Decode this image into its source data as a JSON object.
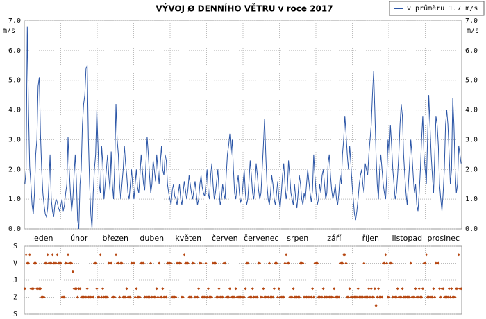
{
  "chart_data": [
    {
      "type": "line",
      "title": "VÝVOJ Ø DENNÍHO VĚTRU v roce 2017",
      "unit": "m/s",
      "x_labels": [
        "leden",
        "únor",
        "březen",
        "duben",
        "květen",
        "červen",
        "červenec",
        "srpen",
        "září",
        "říjen",
        "listopad",
        "prosinec"
      ],
      "ylim": [
        0,
        7
      ],
      "yticks": [
        {
          "value": 0,
          "label": "0.0"
        },
        {
          "value": 1,
          "label": "1.0"
        },
        {
          "value": 2,
          "label": "2.0"
        },
        {
          "value": 3,
          "label": "3.0"
        },
        {
          "value": 4,
          "label": "4.0"
        },
        {
          "value": 5,
          "label": "5.0"
        },
        {
          "value": 6,
          "label": "6.0"
        },
        {
          "value": 7,
          "label": "7.0"
        }
      ],
      "grid": true,
      "legend": "top-right",
      "series": [
        {
          "name": "v průměru 1.7 m/s",
          "color": "#2b55a6",
          "values": [
            1.5,
            2.0,
            6.8,
            4.0,
            2.1,
            1.5,
            0.8,
            0.5,
            1.2,
            2.5,
            3.0,
            4.8,
            5.1,
            3.2,
            2.0,
            1.2,
            0.8,
            0.5,
            0.4,
            0.7,
            1.5,
            2.5,
            1.0,
            0.6,
            0.4,
            0.8,
            1.0,
            0.9,
            0.7,
            0.6,
            0.8,
            1.0,
            0.6,
            0.8,
            1.2,
            1.5,
            3.1,
            2.0,
            1.2,
            0.6,
            1.0,
            1.8,
            2.5,
            1.6,
            0.3,
            0.0,
            1.5,
            2.0,
            3.5,
            4.2,
            4.5,
            5.4,
            5.5,
            3.0,
            1.5,
            0.5,
            0.0,
            1.2,
            2.0,
            2.5,
            4.0,
            2.8,
            1.5,
            1.2,
            2.8,
            2.2,
            1.0,
            1.5,
            2.0,
            2.5,
            1.8,
            1.3,
            2.6,
            1.5,
            1.0,
            2.2,
            4.2,
            3.0,
            2.5,
            1.5,
            1.0,
            1.5,
            2.0,
            2.8,
            2.2,
            1.8,
            1.2,
            1.0,
            1.5,
            2.0,
            1.4,
            1.0,
            1.5,
            2.0,
            1.4,
            1.2,
            1.8,
            2.5,
            2.0,
            1.5,
            1.3,
            2.2,
            3.1,
            2.5,
            1.8,
            1.2,
            1.5,
            2.3,
            2.0,
            1.6,
            2.5,
            2.0,
            1.5,
            2.2,
            2.8,
            2.0,
            1.8,
            2.5,
            2.3,
            1.5,
            1.2,
            1.0,
            0.8,
            1.3,
            1.5,
            1.1,
            1.0,
            0.8,
            1.2,
            1.5,
            1.0,
            0.8,
            1.2,
            1.6,
            1.3,
            1.0,
            1.3,
            1.8,
            1.5,
            1.2,
            1.0,
            1.3,
            1.6,
            1.2,
            0.8,
            1.0,
            1.5,
            1.8,
            1.4,
            1.2,
            1.1,
            1.5,
            2.0,
            1.2,
            1.0,
            1.8,
            2.2,
            1.5,
            1.0,
            1.2,
            1.6,
            2.0,
            1.3,
            0.8,
            1.0,
            1.5,
            1.2,
            1.0,
            1.8,
            2.5,
            2.8,
            3.2,
            2.5,
            3.0,
            2.0,
            1.2,
            1.0,
            1.5,
            1.8,
            1.2,
            0.9,
            1.0,
            1.5,
            2.0,
            1.2,
            0.8,
            1.0,
            1.6,
            2.3,
            1.8,
            1.2,
            1.0,
            1.5,
            2.2,
            1.8,
            1.3,
            1.0,
            1.2,
            2.0,
            2.8,
            3.7,
            2.5,
            1.5,
            1.0,
            0.8,
            1.2,
            1.8,
            1.5,
            1.0,
            0.8,
            1.2,
            1.6,
            1.0,
            0.7,
            1.2,
            1.8,
            2.2,
            1.5,
            1.0,
            1.3,
            2.3,
            1.8,
            1.2,
            1.0,
            0.8,
            1.5,
            1.0,
            0.7,
            1.2,
            1.8,
            1.5,
            1.0,
            0.8,
            1.2,
            1.0,
            1.5,
            2.0,
            1.6,
            1.2,
            0.9,
            1.3,
            2.5,
            1.8,
            1.2,
            0.8,
            1.0,
            1.5,
            1.2,
            1.8,
            2.0,
            1.5,
            1.0,
            1.2,
            2.2,
            2.5,
            1.8,
            1.3,
            1.0,
            1.2,
            1.5,
            1.0,
            0.8,
            1.2,
            1.8,
            1.5,
            2.5,
            3.0,
            3.8,
            3.2,
            2.5,
            2.0,
            2.8,
            2.2,
            1.5,
            1.0,
            0.5,
            0.3,
            0.6,
            1.0,
            1.5,
            1.8,
            2.0,
            1.5,
            1.2,
            2.2,
            2.0,
            1.8,
            2.5,
            3.0,
            3.5,
            4.5,
            5.3,
            4.0,
            2.5,
            1.5,
            1.0,
            2.0,
            2.5,
            2.0,
            1.5,
            1.2,
            1.0,
            1.8,
            3.0,
            2.5,
            3.5,
            2.8,
            2.0,
            1.5,
            1.0,
            1.2,
            1.8,
            2.5,
            3.5,
            4.2,
            3.8,
            2.5,
            1.8,
            1.2,
            0.8,
            1.5,
            2.2,
            3.0,
            2.5,
            1.8,
            1.2,
            1.5,
            0.8,
            0.6,
            1.2,
            2.0,
            3.0,
            3.8,
            2.5,
            2.0,
            1.5,
            3.0,
            4.5,
            3.5,
            2.5,
            1.8,
            1.2,
            2.5,
            3.8,
            3.5,
            2.8,
            1.5,
            1.0,
            0.6,
            1.2,
            2.0,
            3.5,
            4.0,
            3.5,
            2.5,
            1.5,
            2.0,
            4.4,
            3.5,
            2.0,
            1.2,
            1.5,
            2.8,
            2.5,
            2.2
          ]
        }
      ]
    },
    {
      "type": "scatter",
      "ylim": [
        0,
        360
      ],
      "yticks": [
        {
          "value": 0,
          "label": "S"
        },
        {
          "value": 90,
          "label": "V"
        },
        {
          "value": 180,
          "label": "J"
        },
        {
          "value": 270,
          "label": "Z"
        },
        {
          "value": 360,
          "label": "S"
        }
      ],
      "grid": true,
      "color": "#b5450f",
      "values": [
        225,
        45,
        90,
        90,
        45,
        225,
        225,
        225,
        90,
        90,
        225,
        225,
        225,
        225,
        270,
        270,
        270,
        90,
        90,
        45,
        90,
        90,
        90,
        45,
        90,
        90,
        90,
        45,
        90,
        90,
        90,
        270,
        270,
        270,
        90,
        90,
        45,
        90,
        90,
        90,
        135,
        225,
        225,
        225,
        270,
        225,
        225,
        270,
        270,
        270,
        270,
        270,
        225,
        270,
        270,
        270,
        270,
        270,
        90,
        90,
        225,
        270,
        270,
        45,
        270,
        225,
        270,
        270,
        270,
        270,
        90,
        90,
        90,
        270,
        270,
        270,
        45,
        90,
        90,
        270,
        90,
        90,
        270,
        270,
        270,
        225,
        270,
        270,
        270,
        90,
        90,
        90,
        270,
        225,
        270,
        270,
        270,
        90,
        90,
        90,
        270,
        270,
        270,
        270,
        270,
        90,
        270,
        270,
        270,
        270,
        225,
        270,
        90,
        270,
        270,
        225,
        270,
        270,
        270,
        90,
        90,
        90,
        90,
        270,
        270,
        270,
        270,
        90,
        90,
        90,
        90,
        270,
        270,
        45,
        90,
        90,
        90,
        270,
        270,
        270,
        90,
        90,
        270,
        270,
        270,
        225,
        90,
        90,
        270,
        270,
        270,
        90,
        270,
        225,
        270,
        270,
        270,
        90,
        90,
        90,
        270,
        270,
        225,
        270,
        270,
        270,
        90,
        90,
        270,
        270,
        270,
        225,
        270,
        270,
        270,
        270,
        225,
        270,
        270,
        270,
        270,
        270,
        270,
        270,
        225,
        90,
        90,
        270,
        270,
        270,
        225,
        270,
        270,
        270,
        270,
        90,
        90,
        270,
        270,
        225,
        270,
        270,
        270,
        270,
        90,
        270,
        270,
        270,
        225,
        90,
        90,
        270,
        225,
        270,
        270,
        270,
        270,
        90,
        45,
        90,
        90,
        270,
        270,
        270,
        225,
        270,
        270,
        270,
        270,
        270,
        90,
        90,
        90,
        270,
        270,
        270,
        270,
        270,
        270,
        270,
        225,
        270,
        90,
        90,
        90,
        270,
        270,
        270,
        270,
        225,
        270,
        270,
        270,
        270,
        270,
        270,
        270,
        270,
        225,
        270,
        270,
        270,
        270,
        90,
        90,
        90,
        45,
        45,
        90,
        270,
        270,
        225,
        270,
        270,
        270,
        270,
        270,
        270,
        225,
        270,
        270,
        270,
        270,
        90,
        270,
        270,
        270,
        225,
        270,
        225,
        270,
        270,
        225,
        315,
        270,
        225,
        270,
        270,
        270,
        90,
        90,
        45,
        90,
        270,
        270,
        90,
        90,
        270,
        270,
        270,
        270,
        225,
        270,
        270,
        270,
        225,
        270,
        270,
        270,
        270,
        270,
        270,
        90,
        270,
        270,
        270,
        225,
        270,
        270,
        225,
        270,
        270,
        225,
        90,
        90,
        45,
        270,
        270,
        270,
        270,
        270,
        225,
        270,
        90,
        90,
        90,
        225,
        270,
        225,
        225,
        270,
        270,
        270,
        270,
        225,
        270,
        225,
        270,
        270,
        270,
        225,
        225,
        45,
        225,
        225
      ]
    }
  ]
}
